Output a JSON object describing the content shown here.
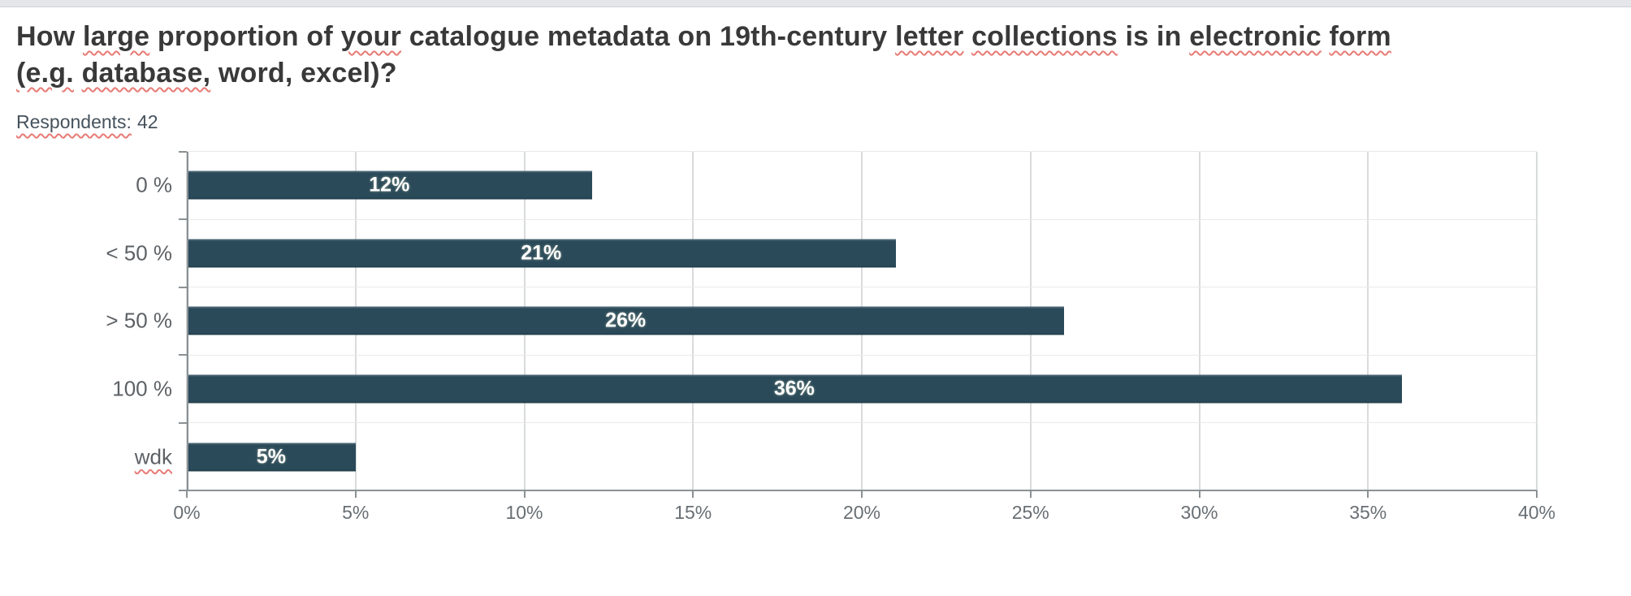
{
  "window": {
    "chrome_strip_color": "#e4e6e9"
  },
  "question": {
    "title_line1": [
      {
        "text": "How ",
        "squiggle": false
      },
      {
        "text": "large",
        "squiggle": true
      },
      {
        "text": " proportion of ",
        "squiggle": false
      },
      {
        "text": "your",
        "squiggle": true
      },
      {
        "text": " catalogue metadata on 19th-century ",
        "squiggle": false
      },
      {
        "text": "letter",
        "squiggle": true
      },
      {
        "text": " ",
        "squiggle": false
      },
      {
        "text": "collections",
        "squiggle": true
      },
      {
        "text": " is in ",
        "squiggle": false
      },
      {
        "text": "electronic",
        "squiggle": true
      },
      {
        "text": " ",
        "squiggle": false
      },
      {
        "text": "form",
        "squiggle": true
      }
    ],
    "title_line2": [
      {
        "text": "(e.g.",
        "squiggle": true
      },
      {
        "text": " ",
        "squiggle": false
      },
      {
        "text": "database,",
        "squiggle": true
      },
      {
        "text": " word, excel)?",
        "squiggle": false
      }
    ],
    "respondents": {
      "label": "Respondents:",
      "value": "42",
      "label_squiggle": true
    }
  },
  "chart_data": {
    "type": "bar",
    "orientation": "horizontal",
    "title": "How large proportion of your catalogue metadata on 19th-century letter collections is in electronic form (e.g. database, word, excel)?",
    "respondents": 42,
    "categories": [
      "0 %",
      "< 50 %",
      "> 50 %",
      "100 %",
      "wdk"
    ],
    "values": [
      12,
      21,
      26,
      36,
      5
    ],
    "value_labels": [
      "12%",
      "21%",
      "26%",
      "36%",
      "5%"
    ],
    "category_squiggle": [
      false,
      false,
      false,
      false,
      true
    ],
    "x_ticks": [
      "0%",
      "5%",
      "10%",
      "15%",
      "20%",
      "25%",
      "30%",
      "35%",
      "40%"
    ],
    "xlim": [
      0,
      40
    ],
    "grid": "vertical-major",
    "legend": "none",
    "value_label_position": "center-of-bar",
    "colors": {
      "bar": "#2a4a59",
      "value_label": "#ffffff",
      "axis": "#8a9195",
      "gridline": "#b3b7ba",
      "row_separator": "#e9e9e9",
      "category_label": "#5d6165",
      "tick_label": "#686f74",
      "title_text": "#393939",
      "respondents_text": "#46525c",
      "squiggle": "#e87a74"
    }
  }
}
